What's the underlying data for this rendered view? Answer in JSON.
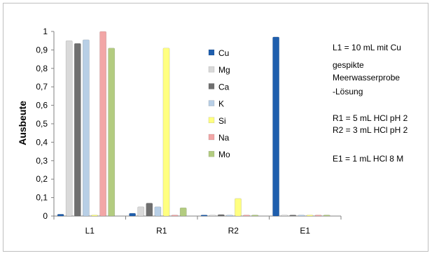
{
  "chart_data": {
    "type": "bar",
    "categories": [
      "L1",
      "R1",
      "R2",
      "E1"
    ],
    "series": [
      {
        "name": "Cu",
        "color": "#1f5fae",
        "values": [
          0.01,
          0.015,
          0.005,
          0.97
        ]
      },
      {
        "name": "Mg",
        "color": "#d9d9d9",
        "values": [
          0.95,
          0.05,
          0.005,
          0.003
        ]
      },
      {
        "name": "Ca",
        "color": "#6f6f6f",
        "values": [
          0.935,
          0.07,
          0.008,
          0.003
        ]
      },
      {
        "name": "K",
        "color": "#b8cfe6",
        "values": [
          0.955,
          0.05,
          0.005,
          0.003
        ]
      },
      {
        "name": "Si",
        "color": "#ffff80",
        "values": [
          0.005,
          0.91,
          0.095,
          0.003
        ]
      },
      {
        "name": "Na",
        "color": "#f2a6a6",
        "values": [
          1.0,
          0.005,
          0.003,
          0.003
        ]
      },
      {
        "name": "Mo",
        "color": "#b3cc80",
        "values": [
          0.91,
          0.045,
          0.003,
          0.003
        ]
      }
    ],
    "ylabel": "Ausbeute",
    "xlabel": "",
    "ylim": [
      0,
      1
    ],
    "yticks": [
      "0",
      "0,1",
      "0,2",
      "0,3",
      "0,4",
      "0,5",
      "0,6",
      "0,7",
      "0,8",
      "0,9",
      "1"
    ],
    "legend_position": "right",
    "grid": false,
    "annotations": [
      "L1 = 10 mL mit Cu",
      "gespikte",
      "Meerwasserprobe",
      "-Lösung",
      "R1 = 5 mL HCl pH 2",
      "R2 = 3 mL HCl pH 2",
      "E1 = 1 mL HCl 8 M"
    ]
  }
}
